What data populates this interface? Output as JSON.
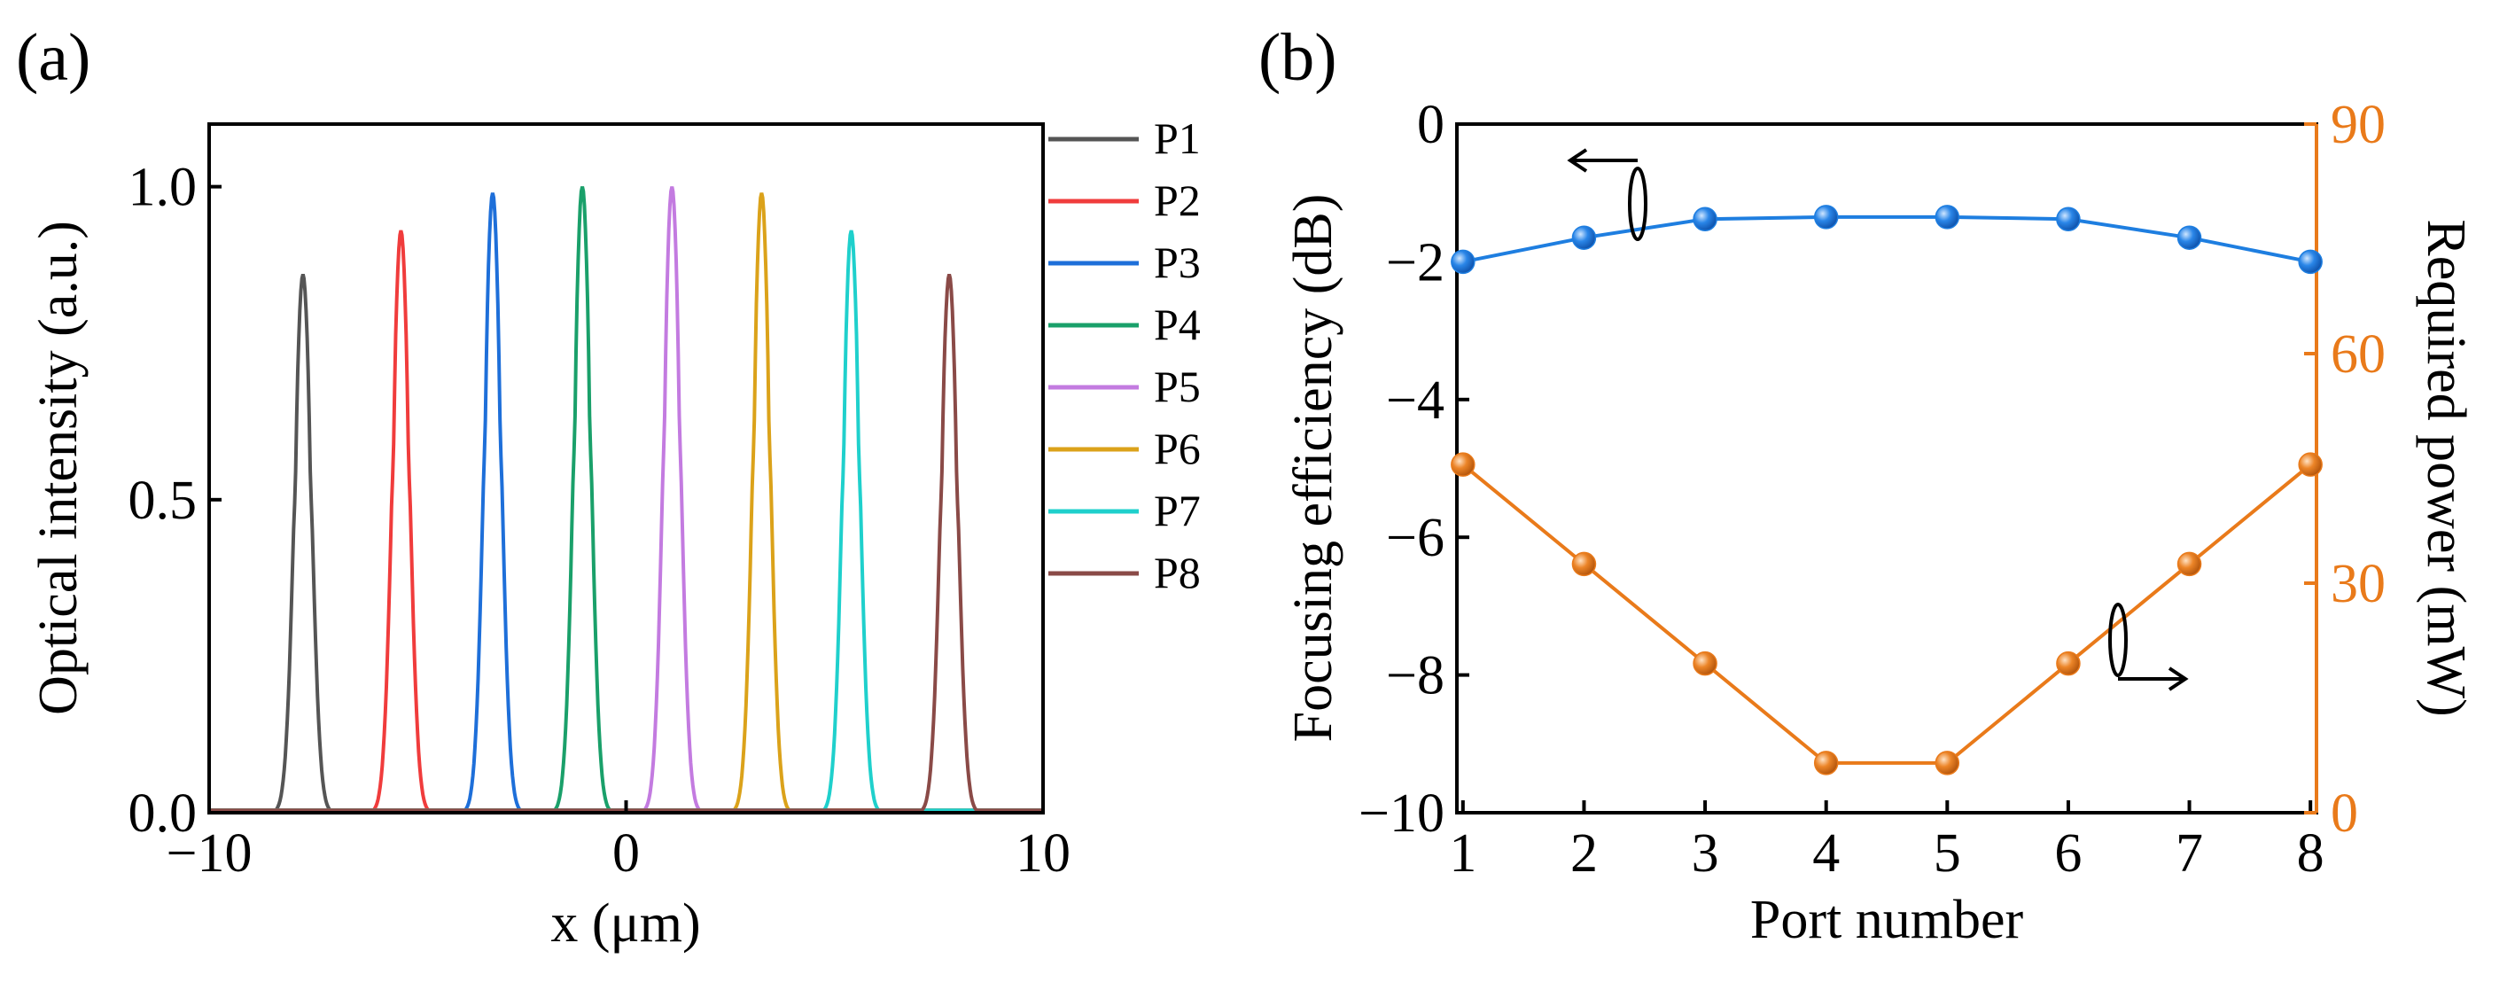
{
  "colors": {
    "axis": "#000000",
    "P1": "#555555",
    "P2": "#f03c3c",
    "P3": "#1e6fd9",
    "P4": "#1aa06a",
    "P5": "#c37be0",
    "P6": "#dba21a",
    "P7": "#1fd0cc",
    "P8": "#8a4a47",
    "efficiency": "#1e7ee0",
    "power": "#e97a1a"
  },
  "chart_data": [
    {
      "panel": "(a)",
      "type": "line",
      "title": "",
      "xlabel": "x (μm)",
      "ylabel": "Optical intensity (a.u.)",
      "xlim": [
        -10,
        10
      ],
      "ylim": [
        0,
        1.1
      ],
      "xticks": [
        -10,
        0,
        10
      ],
      "xtick_labels": [
        "−10",
        "0",
        "10"
      ],
      "yticks": [
        0,
        0.5,
        1
      ],
      "ytick_labels": [
        "0.0",
        "0.5",
        "1.0"
      ],
      "legend_position": "right-outside",
      "series": [
        {
          "name": "P1",
          "center": -7.75,
          "peak": 0.86,
          "width": 0.2,
          "shoulder": 0.68
        },
        {
          "name": "P2",
          "center": -5.4,
          "peak": 0.93,
          "width": 0.2,
          "shoulder": 0.7
        },
        {
          "name": "P3",
          "center": -3.2,
          "peak": 0.99,
          "width": 0.2,
          "shoulder": 0.76
        },
        {
          "name": "P4",
          "center": -1.05,
          "peak": 1.0,
          "width": 0.2,
          "shoulder": 0.76
        },
        {
          "name": "P5",
          "center": 1.1,
          "peak": 1.0,
          "width": 0.2,
          "shoulder": 0.76
        },
        {
          "name": "P6",
          "center": 3.25,
          "peak": 0.99,
          "width": 0.2,
          "shoulder": 0.76
        },
        {
          "name": "P7",
          "center": 5.4,
          "peak": 0.93,
          "width": 0.2,
          "shoulder": 0.7
        },
        {
          "name": "P8",
          "center": 7.75,
          "peak": 0.86,
          "width": 0.2,
          "shoulder": 0.68
        }
      ]
    },
    {
      "panel": "(b)",
      "type": "line",
      "title": "",
      "xlabel": "Port number",
      "ylabel_left": "Focusing efficiency (dB)",
      "ylabel_right": "Required power (mW)",
      "xlim": [
        0.95,
        8.05
      ],
      "ylim_left": [
        -10,
        0
      ],
      "ylim_right": [
        0,
        90
      ],
      "categories": [
        1,
        2,
        3,
        4,
        5,
        6,
        7,
        8
      ],
      "yticks_left": [
        0,
        -2,
        -4,
        -6,
        -8,
        -10
      ],
      "ytick_labels_left": [
        "0",
        "−2",
        "−4",
        "−6",
        "−8",
        "−10"
      ],
      "yticks_right": [
        0,
        30,
        60,
        90
      ],
      "ytick_labels_right": [
        "0",
        "30",
        "60",
        "90"
      ],
      "series": [
        {
          "name": "Focusing efficiency",
          "axis": "left",
          "values": [
            -2.0,
            -1.65,
            -1.38,
            -1.35,
            -1.35,
            -1.38,
            -1.65,
            -2.0
          ]
        },
        {
          "name": "Required power",
          "axis": "right",
          "values": [
            45.5,
            32.5,
            19.5,
            6.5,
            6.5,
            19.5,
            32.5,
            45.5
          ]
        }
      ]
    }
  ]
}
